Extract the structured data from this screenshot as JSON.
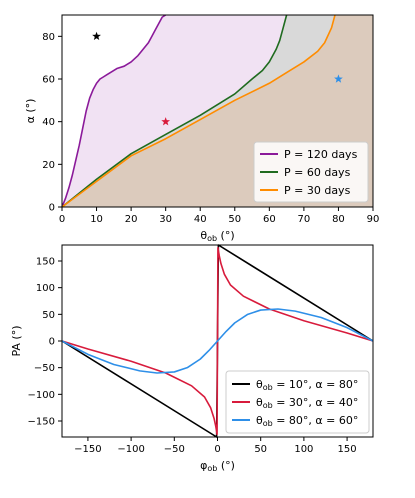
{
  "chart_data": [
    {
      "type": "line",
      "xlabel_main": "θ",
      "xlabel_sub": "ob",
      "xlabel_unit": " (°)",
      "ylabel": "α (°)",
      "xlim": [
        0,
        90
      ],
      "ylim": [
        0,
        90
      ],
      "xticks": [
        0,
        10,
        20,
        30,
        40,
        50,
        60,
        70,
        80,
        90
      ],
      "yticks": [
        0,
        20,
        40,
        60,
        80
      ],
      "grid": false,
      "legend_position": "lower-right",
      "colors": {
        "p120": "#8b1a9a",
        "p60": "#1f6b1f",
        "p30": "#ff8c00",
        "fill_p120": "#f1e2f3",
        "fill_p60": "#d9d9d9",
        "fill_p30": "#dccbbd"
      },
      "series": [
        {
          "name": "P = 120 days",
          "legend_text": "P = 120 days",
          "color": "#8b1a9a",
          "x": [
            0,
            1,
            2,
            3,
            4,
            5,
            6,
            7,
            8,
            9,
            10,
            11,
            12,
            13,
            14,
            16,
            18,
            20,
            22,
            23,
            24,
            25,
            26,
            27,
            28,
            29,
            30
          ],
          "y": [
            0,
            4,
            9,
            15,
            22,
            29,
            37,
            45,
            51,
            55,
            58,
            60,
            61,
            62,
            63,
            65,
            66,
            68,
            71,
            73,
            75,
            77,
            80,
            83,
            86,
            89,
            90
          ]
        },
        {
          "name": "P = 60 days",
          "legend_text": "P = 60 days",
          "color": "#1f6b1f",
          "x": [
            0,
            10,
            20,
            30,
            40,
            50,
            55,
            58,
            60,
            62,
            63,
            64,
            65
          ],
          "y": [
            0,
            13,
            25,
            34,
            43,
            53,
            60,
            64,
            68,
            74,
            78,
            84,
            90
          ]
        },
        {
          "name": "P = 30 days",
          "legend_text": "P = 30 days",
          "color": "#ff8c00",
          "x": [
            0,
            10,
            20,
            30,
            40,
            50,
            60,
            65,
            70,
            74,
            76,
            78,
            79
          ],
          "y": [
            0,
            12,
            24,
            32,
            41,
            50,
            58,
            63,
            68,
            73,
            77,
            84,
            90
          ]
        }
      ],
      "markers": [
        {
          "x": 10,
          "y": 80,
          "color": "#000000"
        },
        {
          "x": 30,
          "y": 40,
          "color": "#d81b3c"
        },
        {
          "x": 80,
          "y": 60,
          "color": "#2e8fe8"
        }
      ]
    },
    {
      "type": "line",
      "xlabel_main": "φ",
      "xlabel_sub": "ob",
      "xlabel_unit": " (°)",
      "ylabel": "PA (°)",
      "xlim": [
        -180,
        180
      ],
      "ylim": [
        -180,
        180
      ],
      "xticks": [
        -150,
        -100,
        -50,
        0,
        50,
        100,
        150
      ],
      "yticks": [
        -150,
        -100,
        -50,
        0,
        50,
        100,
        150
      ],
      "grid": false,
      "legend_position": "lower-right",
      "series": [
        {
          "name": "θob = 10°, α = 80°",
          "legend_main": "θ",
          "legend_sub": "ob",
          "legend_rest": " = 10°, α = 80°",
          "color": "#000000",
          "x": [
            -180,
            -1,
            -1,
            1,
            1,
            180
          ],
          "y": [
            0,
            -180,
            -180,
            180,
            180,
            0
          ]
        },
        {
          "name": "θob = 30°, α = 40°",
          "legend_main": "θ",
          "legend_sub": "ob",
          "legend_rest": " = 30°, α = 40°",
          "color": "#d81b3c",
          "x": [
            -180,
            -150,
            -100,
            -60,
            -30,
            -15,
            -8,
            -4,
            -2,
            -1,
            -0.5,
            0,
            0.5,
            1,
            2,
            4,
            8,
            15,
            30,
            60,
            100,
            150,
            180
          ],
          "y": [
            0,
            -15,
            -38,
            -60,
            -84,
            -105,
            -125,
            -145,
            -160,
            -170,
            -175,
            0,
            175,
            170,
            160,
            145,
            125,
            105,
            84,
            60,
            38,
            15,
            0
          ]
        },
        {
          "name": "θob = 80°, α = 60°",
          "legend_main": "θ",
          "legend_sub": "ob",
          "legend_rest": " = 80°, α = 60°",
          "color": "#2e8fe8",
          "x": [
            -180,
            -150,
            -120,
            -90,
            -70,
            -50,
            -35,
            -20,
            -10,
            0,
            10,
            20,
            35,
            50,
            70,
            90,
            120,
            150,
            180
          ],
          "y": [
            0,
            -25,
            -44,
            -56,
            -60,
            -58,
            -50,
            -34,
            -18,
            0,
            18,
            34,
            50,
            58,
            60,
            56,
            44,
            25,
            0
          ]
        }
      ]
    }
  ]
}
